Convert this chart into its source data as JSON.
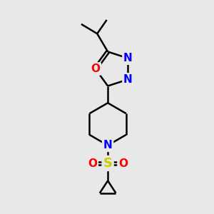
{
  "background_color": "#e8e8e8",
  "bond_color": "#000000",
  "bond_width": 1.8,
  "atom_colors": {
    "N": "#0000ff",
    "O": "#ff0000",
    "S": "#cccc00",
    "C": "#000000"
  },
  "font_size_atom": 11,
  "fig_bg": "#e8e8e8",
  "xlim": [
    0,
    10
  ],
  "ylim": [
    0,
    10
  ]
}
